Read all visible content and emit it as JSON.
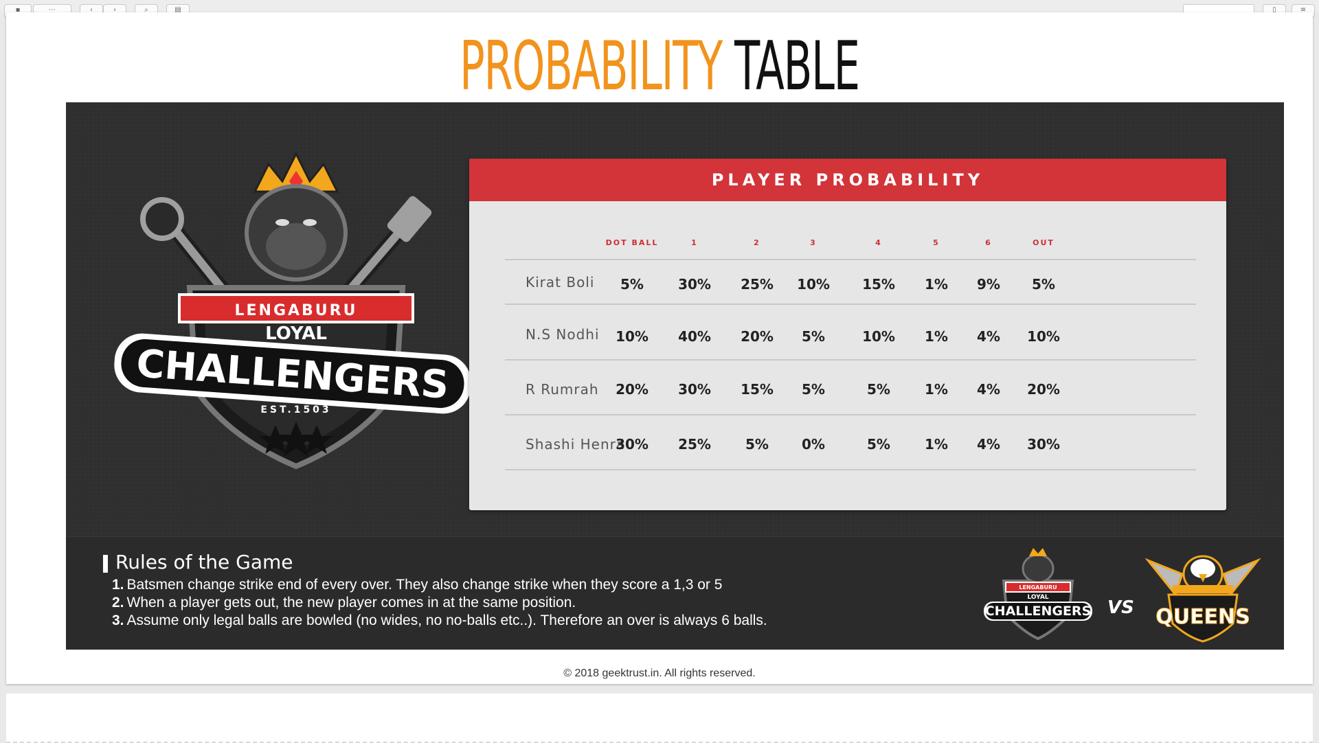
{
  "title": {
    "part1": "PROBABILITY",
    "part2": "TABLE"
  },
  "logo": {
    "line1": "LENGABURU",
    "line2": "LOYAL",
    "line3": "CHALLENGERS",
    "est": "EST.1503"
  },
  "card": {
    "heading": "PLAYER PROBABILITY",
    "columns": [
      "DOT BALL",
      "1",
      "2",
      "3",
      "4",
      "5",
      "6",
      "OUT"
    ],
    "rows": [
      {
        "name": "Kirat Boli",
        "values": [
          "5%",
          "30%",
          "25%",
          "10%",
          "15%",
          "1%",
          "9%",
          "5%"
        ]
      },
      {
        "name": "N.S Nodhi",
        "values": [
          "10%",
          "40%",
          "20%",
          "5%",
          "10%",
          "1%",
          "4%",
          "10%"
        ]
      },
      {
        "name": "R Rumrah",
        "values": [
          "20%",
          "30%",
          "15%",
          "5%",
          "5%",
          "1%",
          "4%",
          "20%"
        ]
      },
      {
        "name": "Shashi Henra",
        "values": [
          "30%",
          "25%",
          "5%",
          "0%",
          "5%",
          "1%",
          "4%",
          "30%"
        ]
      }
    ]
  },
  "rules": {
    "heading": "Rules of the Game",
    "items": [
      {
        "num": "1.",
        "text": "Batsmen change strike end of every over. They also change strike when they score a 1,3 or 5"
      },
      {
        "num": "2.",
        "text": "When a player gets out, the new player comes in at the same position."
      },
      {
        "num": "3.",
        "text": "Assume only legal balls are bowled (no wides, no no-balls etc..). Therefore an over is always 6 balls."
      }
    ]
  },
  "teams": {
    "left_line1": "LENGABURU",
    "left_line2": "LOYAL",
    "left_line3": "CHALLENGERS",
    "vs": "VS",
    "right": "QUEENS"
  },
  "footer": {
    "copyright": "© 2018 geektrust.in. All rights reserved."
  },
  "colors": {
    "accent_orange": "#f2931d",
    "card_red": "#d2343a",
    "banner_dark": "#2f2f2f"
  },
  "icons": [
    "gorilla-mascot-icon",
    "crown-icon",
    "bat-icon",
    "eagle-mascot-icon"
  ]
}
